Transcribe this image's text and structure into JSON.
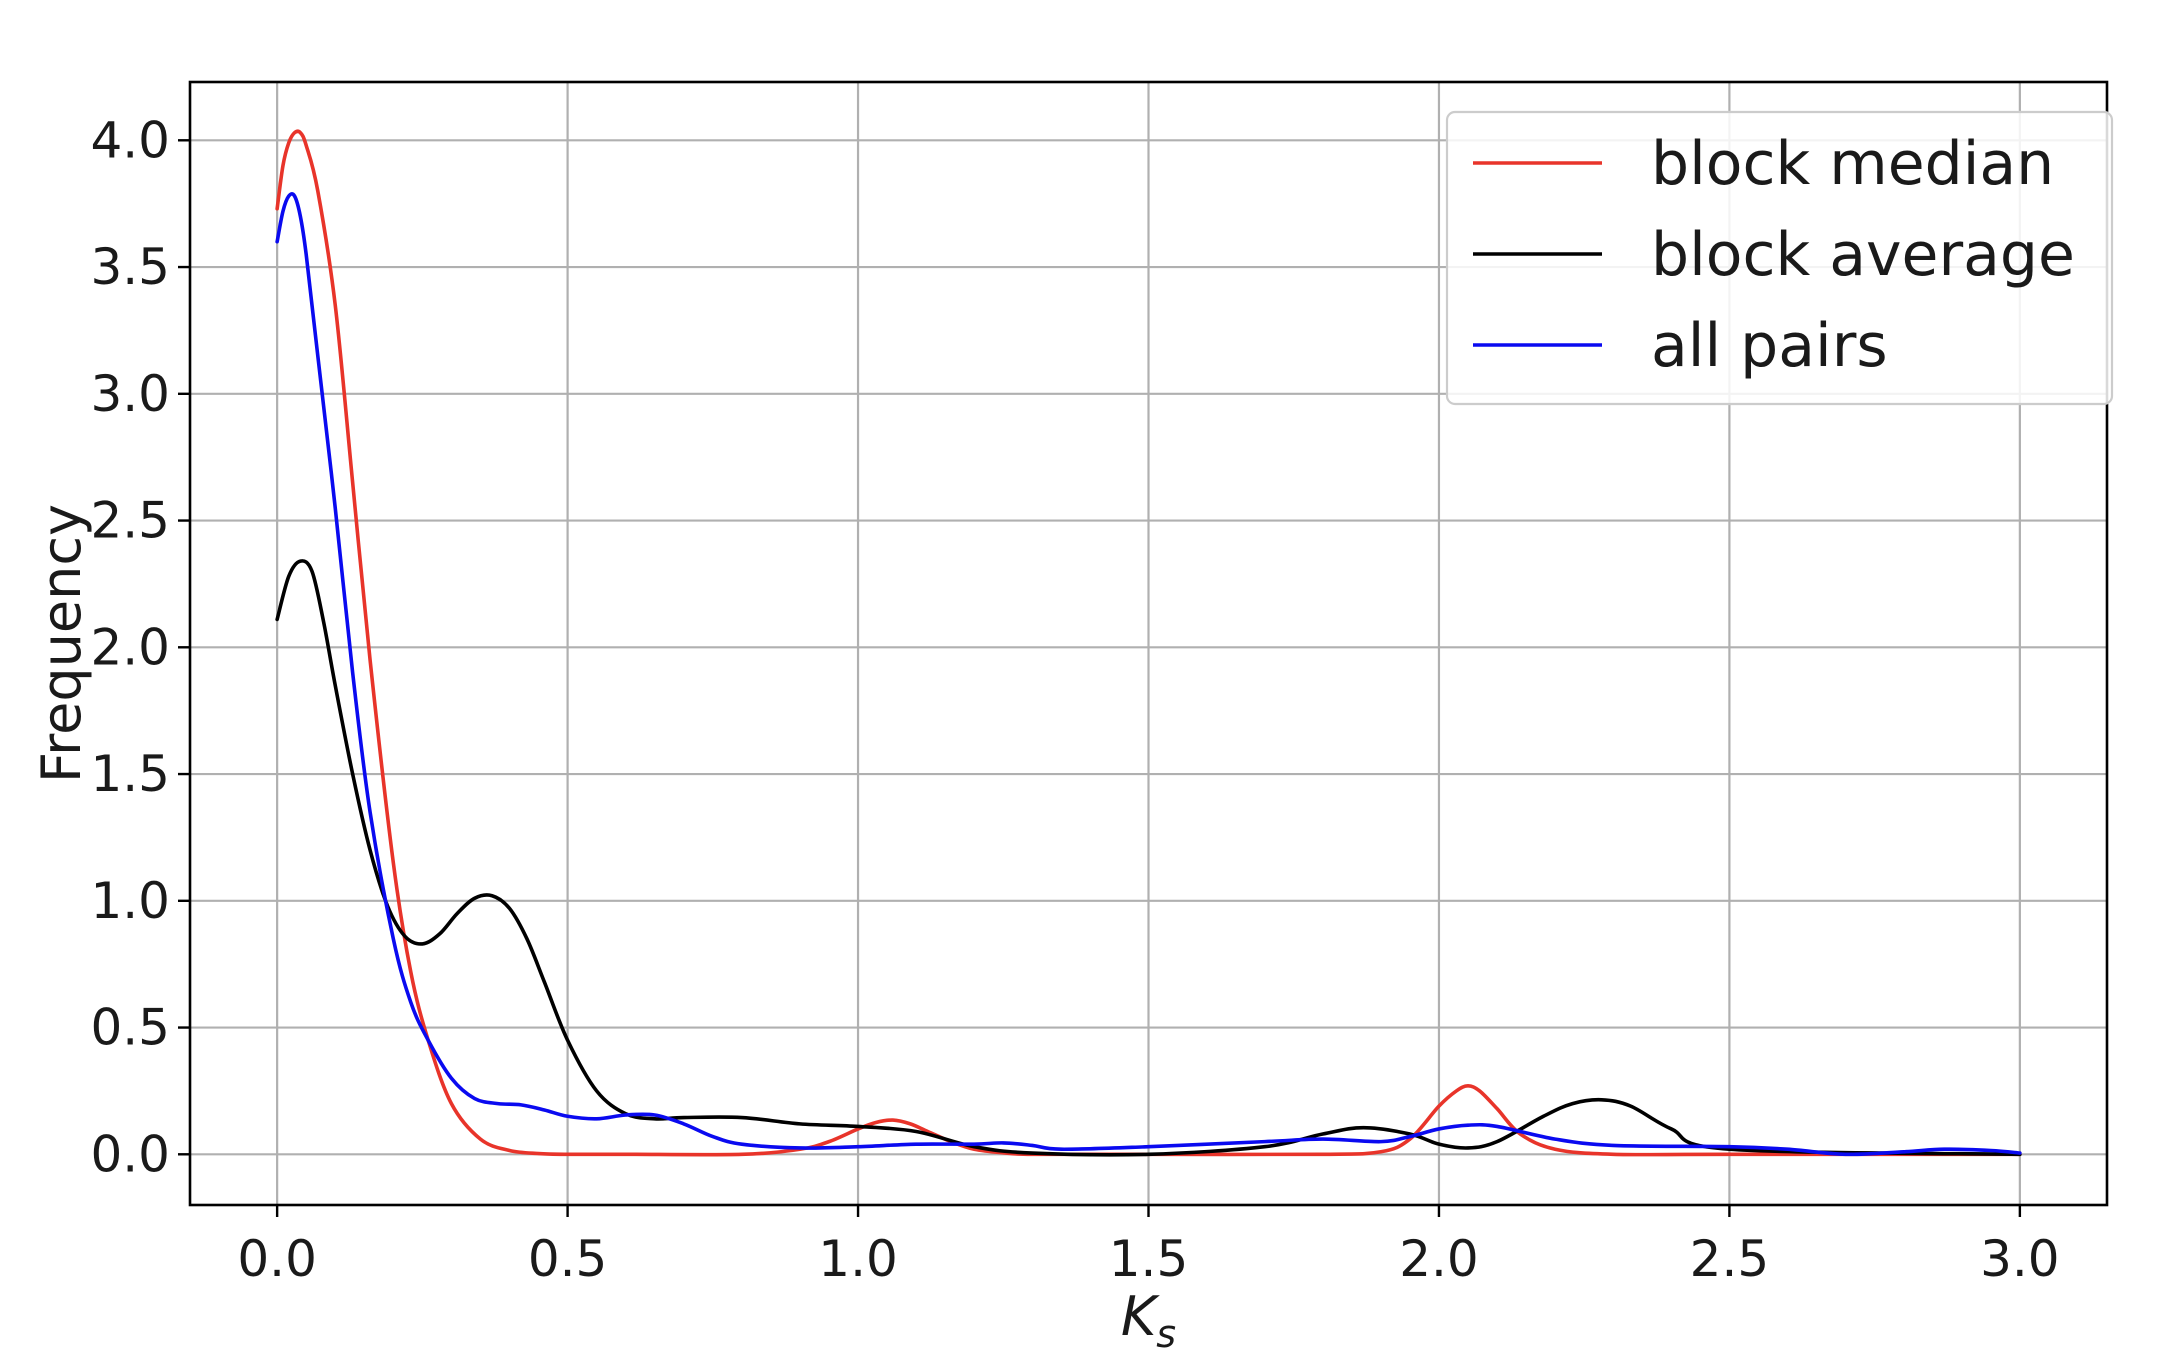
{
  "chart_data": {
    "type": "line",
    "title": "",
    "xlabel": "K",
    "xlabel_sub": "s",
    "ylabel": "Frequency",
    "xlim": [
      -0.15,
      3.15
    ],
    "ylim": [
      -0.2,
      4.23
    ],
    "grid": true,
    "legend_position": "top-right",
    "xticks": [
      0.0,
      0.5,
      1.0,
      1.5,
      2.0,
      2.5,
      3.0
    ],
    "xtick_labels": [
      "0.0",
      "0.5",
      "1.0",
      "1.5",
      "2.0",
      "2.5",
      "3.0"
    ],
    "yticks": [
      0.0,
      0.5,
      1.0,
      1.5,
      2.0,
      2.5,
      3.0,
      3.5,
      4.0
    ],
    "ytick_labels": [
      "0.0",
      "0.5",
      "1.0",
      "1.5",
      "2.0",
      "2.5",
      "3.0",
      "3.5",
      "4.0"
    ],
    "series": [
      {
        "name": "block median",
        "color": "#e8342a",
        "x": [
          0.0,
          0.01,
          0.02,
          0.03,
          0.04,
          0.05,
          0.07,
          0.1,
          0.13,
          0.16,
          0.2,
          0.23,
          0.26,
          0.3,
          0.35,
          0.4,
          0.45,
          0.5,
          0.6,
          0.8,
          0.9,
          0.95,
          1.0,
          1.03,
          1.06,
          1.09,
          1.12,
          1.16,
          1.2,
          1.25,
          1.3,
          1.5,
          1.8,
          1.9,
          1.95,
          2.0,
          2.03,
          2.05,
          2.07,
          2.1,
          2.14,
          2.2,
          2.3,
          2.5,
          3.0
        ],
        "y": [
          3.73,
          3.9,
          3.99,
          4.03,
          4.03,
          3.98,
          3.8,
          3.35,
          2.65,
          1.95,
          1.15,
          0.72,
          0.45,
          0.2,
          0.06,
          0.015,
          0.003,
          0.0,
          0.0,
          0.0,
          0.02,
          0.05,
          0.1,
          0.125,
          0.135,
          0.12,
          0.09,
          0.05,
          0.02,
          0.006,
          0.0,
          0.0,
          0.0,
          0.01,
          0.06,
          0.19,
          0.25,
          0.27,
          0.25,
          0.18,
          0.08,
          0.02,
          0.0,
          0.0,
          0.0
        ]
      },
      {
        "name": "block average",
        "color": "#000000",
        "x": [
          0.0,
          0.02,
          0.04,
          0.06,
          0.08,
          0.1,
          0.13,
          0.16,
          0.19,
          0.22,
          0.25,
          0.28,
          0.31,
          0.34,
          0.37,
          0.4,
          0.43,
          0.46,
          0.5,
          0.55,
          0.6,
          0.65,
          0.7,
          0.8,
          0.9,
          1.0,
          1.1,
          1.2,
          1.3,
          1.5,
          1.7,
          1.8,
          1.87,
          1.95,
          2.0,
          2.05,
          2.1,
          2.18,
          2.23,
          2.28,
          2.33,
          2.4,
          2.5,
          3.0
        ],
        "y": [
          2.11,
          2.28,
          2.34,
          2.3,
          2.1,
          1.85,
          1.5,
          1.2,
          0.98,
          0.86,
          0.83,
          0.87,
          0.95,
          1.01,
          1.02,
          0.97,
          0.85,
          0.68,
          0.45,
          0.25,
          0.16,
          0.14,
          0.145,
          0.145,
          0.12,
          0.11,
          0.09,
          0.03,
          0.005,
          0.0,
          0.03,
          0.08,
          0.105,
          0.08,
          0.04,
          0.025,
          0.05,
          0.15,
          0.2,
          0.215,
          0.19,
          0.1,
          0.02,
          0.0
        ]
      },
      {
        "name": "all pairs",
        "color": "#0a0af0",
        "x": [
          0.0,
          0.01,
          0.02,
          0.03,
          0.04,
          0.05,
          0.07,
          0.1,
          0.13,
          0.16,
          0.2,
          0.23,
          0.26,
          0.3,
          0.34,
          0.38,
          0.42,
          0.46,
          0.5,
          0.55,
          0.6,
          0.65,
          0.7,
          0.75,
          0.8,
          0.9,
          1.0,
          1.1,
          1.2,
          1.25,
          1.3,
          1.35,
          1.5,
          1.7,
          1.8,
          1.9,
          1.95,
          2.0,
          2.05,
          2.1,
          2.2,
          2.3,
          2.5,
          2.6,
          2.7,
          2.8,
          2.87,
          2.95,
          3.0
        ],
        "y": [
          3.6,
          3.72,
          3.78,
          3.78,
          3.7,
          3.55,
          3.15,
          2.55,
          1.9,
          1.35,
          0.85,
          0.6,
          0.45,
          0.3,
          0.22,
          0.2,
          0.195,
          0.175,
          0.15,
          0.14,
          0.155,
          0.155,
          0.12,
          0.07,
          0.04,
          0.025,
          0.03,
          0.04,
          0.04,
          0.045,
          0.035,
          0.02,
          0.03,
          0.05,
          0.06,
          0.05,
          0.07,
          0.1,
          0.115,
          0.11,
          0.06,
          0.035,
          0.03,
          0.02,
          0.0,
          0.01,
          0.02,
          0.015,
          0.005
        ]
      }
    ]
  }
}
